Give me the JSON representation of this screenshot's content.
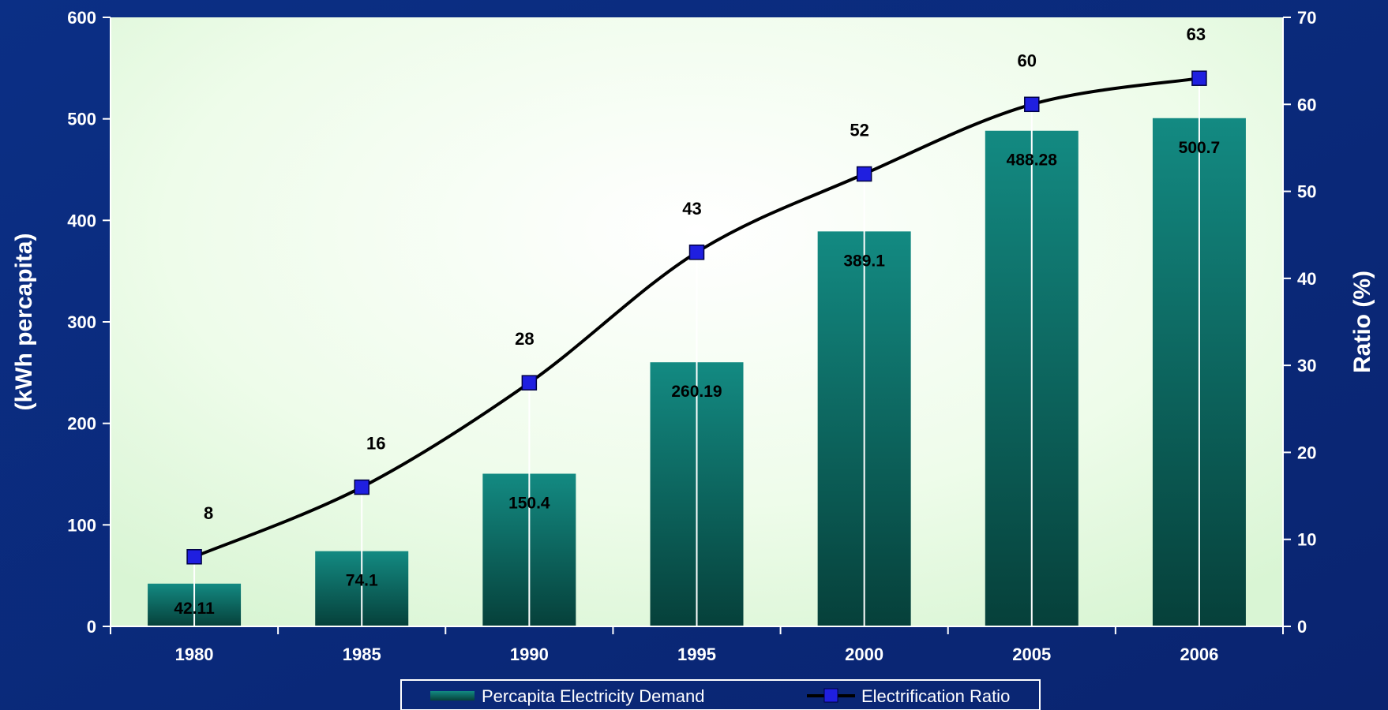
{
  "chart_data": {
    "type": "bar",
    "categories": [
      "1980",
      "1985",
      "1990",
      "1995",
      "2000",
      "2005",
      "2006"
    ],
    "series": [
      {
        "name": "Percapita Electricity Demand",
        "type": "bar",
        "axis": "left",
        "values": [
          42.11,
          74.1,
          150.4,
          260.19,
          389.1,
          488.28,
          500.7
        ],
        "labels": [
          "42.11",
          "74.1",
          "150.4",
          "260.19",
          "389.1",
          "488.28",
          "500.7"
        ]
      },
      {
        "name": "Electrification Ratio",
        "type": "line",
        "axis": "right",
        "values": [
          8,
          16,
          28,
          43,
          52,
          60,
          63
        ],
        "labels": [
          "8",
          "16",
          "28",
          "43",
          "52",
          "60",
          "63"
        ]
      }
    ],
    "ylabel": "(kWh percapita)",
    "y2label": "Ratio (%)",
    "ylim": [
      0,
      600
    ],
    "y2lim": [
      0,
      70
    ],
    "yticks": [
      "0",
      "100",
      "200",
      "300",
      "400",
      "500",
      "600"
    ],
    "y2ticks": [
      "0",
      "10",
      "20",
      "30",
      "40",
      "50",
      "60",
      "70"
    ],
    "grid": false,
    "legend_position": "bottom",
    "colors": {
      "background": "#0a2a7a",
      "plot_area": "#eafbe6",
      "bar_top": "#138a82",
      "bar_bottom": "#06403a",
      "line": "#000000",
      "marker": "#1f1fe0"
    }
  }
}
